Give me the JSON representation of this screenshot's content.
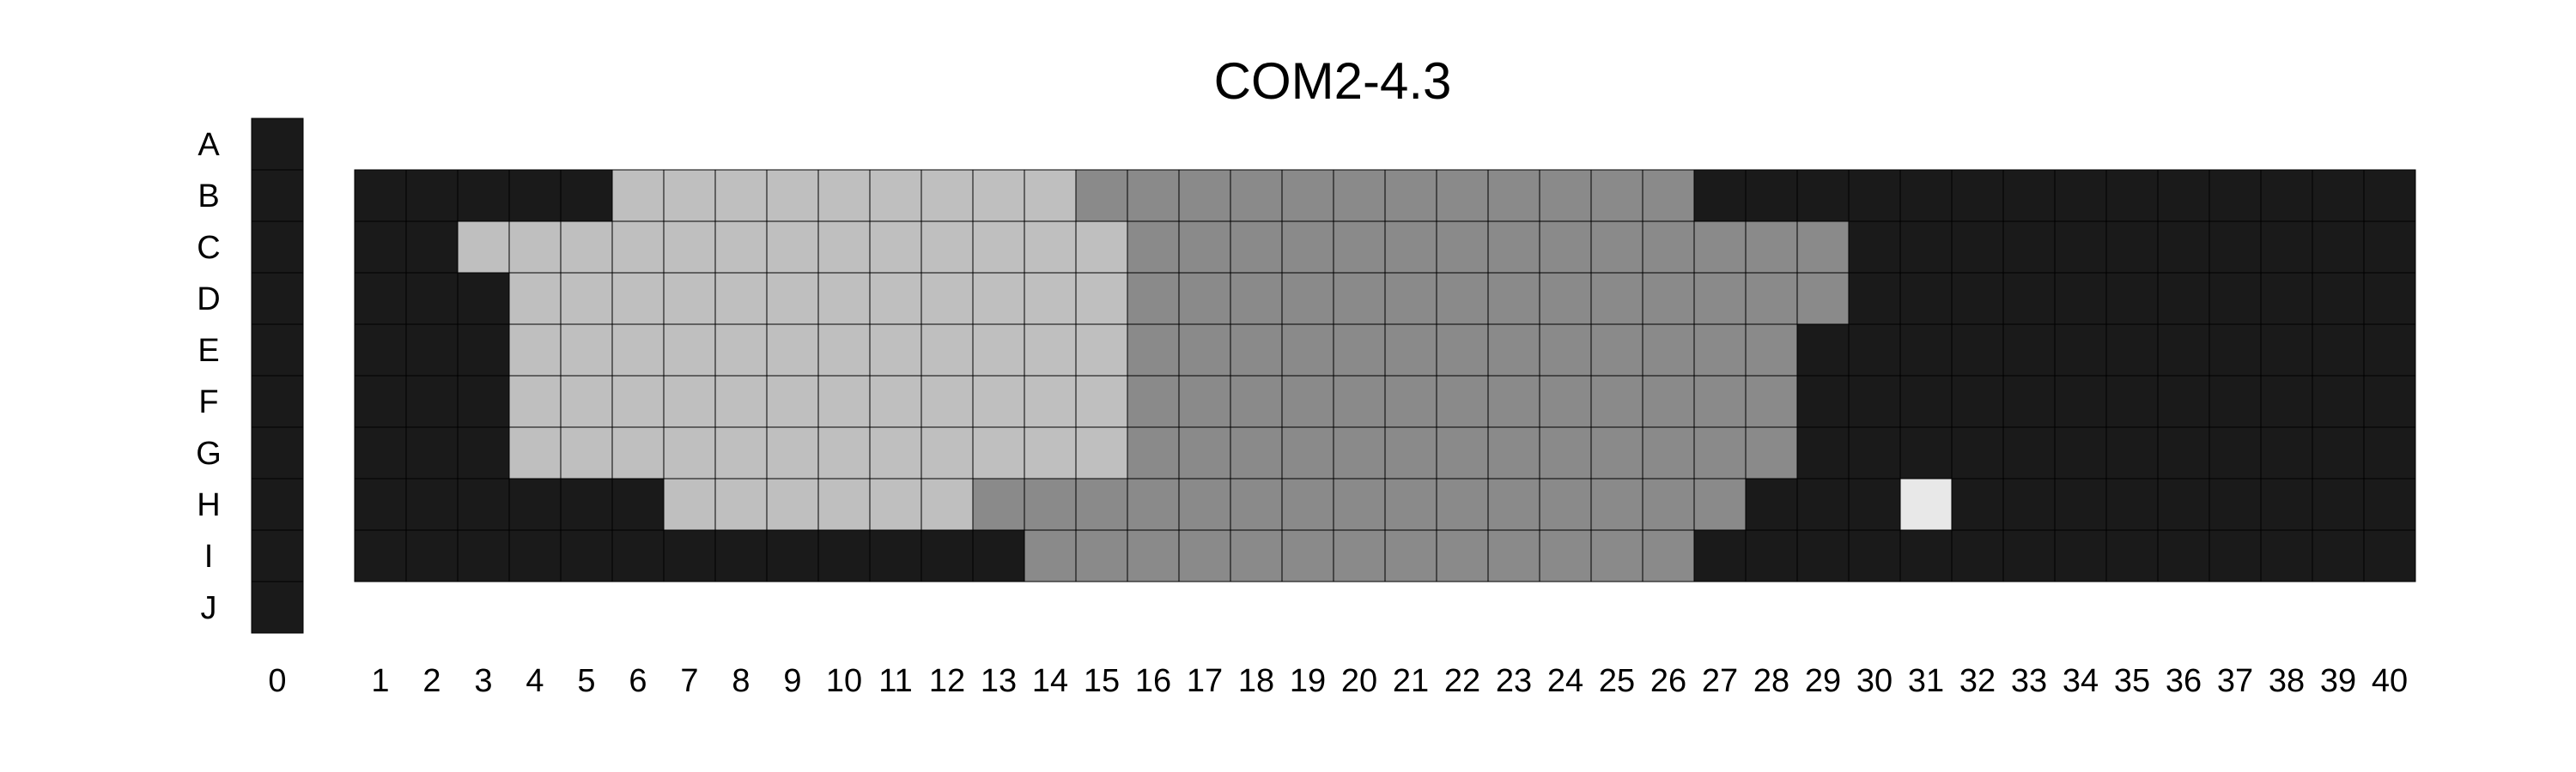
{
  "chart_data": {
    "type": "heatmap",
    "title": "COM2-4.3",
    "row_labels": [
      "A",
      "B",
      "C",
      "D",
      "E",
      "F",
      "G",
      "H",
      "I",
      "J"
    ],
    "column_labels": [
      "0",
      "1",
      "2",
      "3",
      "4",
      "5",
      "6",
      "7",
      "8",
      "9",
      "10",
      "11",
      "12",
      "13",
      "14",
      "15",
      "16",
      "17",
      "18",
      "19",
      "20",
      "21",
      "22",
      "23",
      "24",
      "25",
      "26",
      "27",
      "28",
      "29",
      "30",
      "31",
      "32",
      "33",
      "34",
      "35",
      "36",
      "37",
      "38",
      "39",
      "40"
    ],
    "colors": {
      "0": "#1a1a1a",
      "1": "#bfbfbf",
      "2": "#8a8a8a",
      "3": "#e8e8e8"
    },
    "column_0": [
      0,
      0,
      0,
      0,
      0,
      0,
      0,
      0,
      0,
      0
    ],
    "grid_rows": {
      "B": [
        0,
        0,
        0,
        0,
        0,
        1,
        1,
        1,
        1,
        1,
        1,
        1,
        1,
        1,
        2,
        2,
        2,
        2,
        2,
        2,
        2,
        2,
        2,
        2,
        2,
        2,
        0,
        0,
        0,
        0,
        0,
        0,
        0,
        0,
        0,
        0,
        0,
        0,
        0,
        0
      ],
      "C": [
        0,
        0,
        1,
        1,
        1,
        1,
        1,
        1,
        1,
        1,
        1,
        1,
        1,
        1,
        1,
        2,
        2,
        2,
        2,
        2,
        2,
        2,
        2,
        2,
        2,
        2,
        2,
        2,
        2,
        0,
        0,
        0,
        0,
        0,
        0,
        0,
        0,
        0,
        0,
        0
      ],
      "D": [
        0,
        0,
        0,
        1,
        1,
        1,
        1,
        1,
        1,
        1,
        1,
        1,
        1,
        1,
        1,
        2,
        2,
        2,
        2,
        2,
        2,
        2,
        2,
        2,
        2,
        2,
        2,
        2,
        2,
        0,
        0,
        0,
        0,
        0,
        0,
        0,
        0,
        0,
        0,
        0
      ],
      "E": [
        0,
        0,
        0,
        1,
        1,
        1,
        1,
        1,
        1,
        1,
        1,
        1,
        1,
        1,
        1,
        2,
        2,
        2,
        2,
        2,
        2,
        2,
        2,
        2,
        2,
        2,
        2,
        2,
        0,
        0,
        0,
        0,
        0,
        0,
        0,
        0,
        0,
        0,
        0,
        0
      ],
      "F": [
        0,
        0,
        0,
        1,
        1,
        1,
        1,
        1,
        1,
        1,
        1,
        1,
        1,
        1,
        1,
        2,
        2,
        2,
        2,
        2,
        2,
        2,
        2,
        2,
        2,
        2,
        2,
        2,
        0,
        0,
        0,
        0,
        0,
        0,
        0,
        0,
        0,
        0,
        0,
        0
      ],
      "G": [
        0,
        0,
        0,
        1,
        1,
        1,
        1,
        1,
        1,
        1,
        1,
        1,
        1,
        1,
        1,
        2,
        2,
        2,
        2,
        2,
        2,
        2,
        2,
        2,
        2,
        2,
        2,
        2,
        0,
        0,
        0,
        0,
        0,
        0,
        0,
        0,
        0,
        0,
        0,
        0
      ],
      "H": [
        0,
        0,
        0,
        0,
        0,
        0,
        1,
        1,
        1,
        1,
        1,
        1,
        2,
        2,
        2,
        2,
        2,
        2,
        2,
        2,
        2,
        2,
        2,
        2,
        2,
        2,
        2,
        0,
        0,
        0,
        3,
        0,
        0,
        0,
        0,
        0,
        0,
        0,
        0,
        0
      ],
      "I": [
        0,
        0,
        0,
        0,
        0,
        0,
        0,
        0,
        0,
        0,
        0,
        0,
        0,
        2,
        2,
        2,
        2,
        2,
        2,
        2,
        2,
        2,
        2,
        2,
        2,
        2,
        0,
        0,
        0,
        0,
        0,
        0,
        0,
        0,
        0,
        0,
        0,
        0,
        0,
        0
      ]
    }
  }
}
